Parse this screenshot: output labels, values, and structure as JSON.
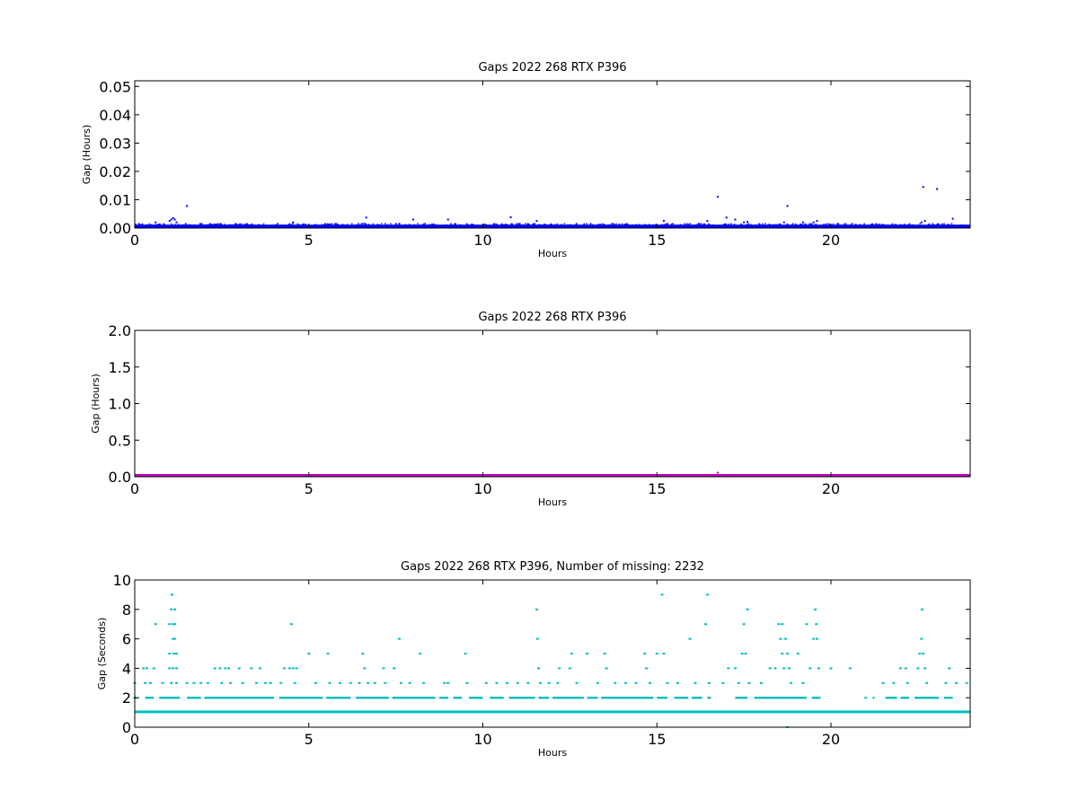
{
  "chart_data": [
    {
      "type": "scatter",
      "title": "Gaps 2022 268 RTX  P396",
      "xlabel": "Hours",
      "ylabel": "Gap (Hours)",
      "xlim": [
        0,
        24
      ],
      "ylim": [
        0,
        0.052
      ],
      "xticks": [
        "0",
        "5",
        "10",
        "15",
        "20"
      ],
      "yticks": [
        "0.00",
        "0.01",
        "0.02",
        "0.03",
        "0.04",
        "0.05"
      ],
      "grid": false,
      "series": [
        {
          "color": "#0000ff",
          "baseline": {
            "y_min": 0.0,
            "y_max": 0.0012
          },
          "points": [
            {
              "x": 0.6,
              "y": 0.002
            },
            {
              "x": 1.0,
              "y": 0.0025
            },
            {
              "x": 1.05,
              "y": 0.003
            },
            {
              "x": 1.1,
              "y": 0.0035
            },
            {
              "x": 1.15,
              "y": 0.003
            },
            {
              "x": 1.2,
              "y": 0.002
            },
            {
              "x": 1.5,
              "y": 0.0078
            },
            {
              "x": 4.55,
              "y": 0.002
            },
            {
              "x": 6.65,
              "y": 0.0037
            },
            {
              "x": 7.6,
              "y": 0.0015
            },
            {
              "x": 8.0,
              "y": 0.003
            },
            {
              "x": 9.0,
              "y": 0.003
            },
            {
              "x": 10.8,
              "y": 0.0038
            },
            {
              "x": 11.55,
              "y": 0.0025
            },
            {
              "x": 15.2,
              "y": 0.0025
            },
            {
              "x": 16.2,
              "y": 0.0015
            },
            {
              "x": 16.45,
              "y": 0.0025
            },
            {
              "x": 16.75,
              "y": 0.011
            },
            {
              "x": 17.0,
              "y": 0.0037
            },
            {
              "x": 17.25,
              "y": 0.003
            },
            {
              "x": 17.5,
              "y": 0.002
            },
            {
              "x": 17.6,
              "y": 0.0022
            },
            {
              "x": 18.65,
              "y": 0.002
            },
            {
              "x": 18.75,
              "y": 0.0078
            },
            {
              "x": 19.2,
              "y": 0.002
            },
            {
              "x": 19.5,
              "y": 0.002
            },
            {
              "x": 19.6,
              "y": 0.0025
            },
            {
              "x": 22.6,
              "y": 0.002
            },
            {
              "x": 22.65,
              "y": 0.0145
            },
            {
              "x": 22.7,
              "y": 0.0025
            },
            {
              "x": 23.05,
              "y": 0.0138
            },
            {
              "x": 23.5,
              "y": 0.0033
            }
          ]
        }
      ]
    },
    {
      "type": "scatter",
      "title": "Gaps 2022 268 RTX  P396",
      "xlabel": "Hours",
      "ylabel": "Gap (Hours)",
      "xlim": [
        0,
        24
      ],
      "ylim": [
        0,
        2.0
      ],
      "xticks": [
        "0",
        "5",
        "10",
        "15",
        "20"
      ],
      "yticks": [
        "0.0",
        "0.5",
        "1.0",
        "1.5",
        "2.0"
      ],
      "grid": false,
      "series": [
        {
          "color": "#bf00bf",
          "baseline": {
            "y_min": 0.0,
            "y_max": 0.02
          },
          "points": [
            {
              "x": 16.75,
              "y": 0.055
            }
          ]
        }
      ]
    },
    {
      "type": "scatter",
      "title": "Gaps 2022 268 RTX  P396, Number of missing: 2232",
      "xlabel": "Hours",
      "ylabel": "Gap (Seconds)",
      "xlim": [
        0,
        24
      ],
      "ylim": [
        0,
        10
      ],
      "xticks": [
        "0",
        "5",
        "10",
        "15",
        "20"
      ],
      "yticks": [
        "0",
        "2",
        "4",
        "6",
        "8",
        "10"
      ],
      "grid": false,
      "series": [
        {
          "color": "#00bfbf",
          "baseline": {
            "y_min": 0.95,
            "y_max": 1.05
          },
          "points": [
            {
              "x": 0.0,
              "y": 3
            },
            {
              "x": 0.0,
              "y": 2
            },
            {
              "x": 0.25,
              "y": 4
            },
            {
              "x": 0.35,
              "y": 4
            },
            {
              "x": 0.3,
              "y": 3
            },
            {
              "x": 0.45,
              "y": 3
            },
            {
              "x": 0.55,
              "y": 4
            },
            {
              "x": 0.6,
              "y": 7
            },
            {
              "x": 0.8,
              "y": 3
            },
            {
              "x": 1.0,
              "y": 7
            },
            {
              "x": 1.05,
              "y": 8
            },
            {
              "x": 1.07,
              "y": 9
            },
            {
              "x": 1.1,
              "y": 7
            },
            {
              "x": 1.1,
              "y": 6
            },
            {
              "x": 1.12,
              "y": 5
            },
            {
              "x": 1.15,
              "y": 8
            },
            {
              "x": 1.15,
              "y": 7
            },
            {
              "x": 1.15,
              "y": 6
            },
            {
              "x": 1.0,
              "y": 5
            },
            {
              "x": 1.2,
              "y": 5
            },
            {
              "x": 1.0,
              "y": 4
            },
            {
              "x": 1.1,
              "y": 4
            },
            {
              "x": 1.2,
              "y": 4
            },
            {
              "x": 1.05,
              "y": 3
            },
            {
              "x": 1.2,
              "y": 3
            },
            {
              "x": 1.5,
              "y": 3
            },
            {
              "x": 1.7,
              "y": 3
            },
            {
              "x": 1.9,
              "y": 3
            },
            {
              "x": 2.1,
              "y": 3
            },
            {
              "x": 2.3,
              "y": 4
            },
            {
              "x": 2.45,
              "y": 4
            },
            {
              "x": 2.6,
              "y": 4
            },
            {
              "x": 2.7,
              "y": 4
            },
            {
              "x": 2.5,
              "y": 3
            },
            {
              "x": 2.75,
              "y": 3
            },
            {
              "x": 3.0,
              "y": 4
            },
            {
              "x": 3.1,
              "y": 3
            },
            {
              "x": 3.35,
              "y": 4
            },
            {
              "x": 3.5,
              "y": 3
            },
            {
              "x": 3.6,
              "y": 4
            },
            {
              "x": 3.75,
              "y": 3
            },
            {
              "x": 3.9,
              "y": 3
            },
            {
              "x": 4.2,
              "y": 3
            },
            {
              "x": 4.3,
              "y": 4
            },
            {
              "x": 4.45,
              "y": 4
            },
            {
              "x": 4.5,
              "y": 7
            },
            {
              "x": 4.55,
              "y": 4
            },
            {
              "x": 4.6,
              "y": 3
            },
            {
              "x": 4.65,
              "y": 4
            },
            {
              "x": 5.0,
              "y": 5
            },
            {
              "x": 5.2,
              "y": 3
            },
            {
              "x": 5.55,
              "y": 5
            },
            {
              "x": 5.6,
              "y": 3
            },
            {
              "x": 5.9,
              "y": 3
            },
            {
              "x": 6.2,
              "y": 3
            },
            {
              "x": 6.45,
              "y": 3
            },
            {
              "x": 6.55,
              "y": 5
            },
            {
              "x": 6.6,
              "y": 4
            },
            {
              "x": 6.7,
              "y": 3
            },
            {
              "x": 6.9,
              "y": 3
            },
            {
              "x": 7.15,
              "y": 4
            },
            {
              "x": 7.2,
              "y": 3
            },
            {
              "x": 7.45,
              "y": 4
            },
            {
              "x": 7.6,
              "y": 6
            },
            {
              "x": 7.65,
              "y": 3
            },
            {
              "x": 7.9,
              "y": 3
            },
            {
              "x": 8.2,
              "y": 5
            },
            {
              "x": 8.3,
              "y": 3
            },
            {
              "x": 8.6,
              "y": 2
            },
            {
              "x": 8.9,
              "y": 3
            },
            {
              "x": 9.0,
              "y": 3
            },
            {
              "x": 9.3,
              "y": 2
            },
            {
              "x": 9.5,
              "y": 5
            },
            {
              "x": 9.55,
              "y": 3
            },
            {
              "x": 9.8,
              "y": 2
            },
            {
              "x": 10.1,
              "y": 3
            },
            {
              "x": 10.4,
              "y": 3
            },
            {
              "x": 10.7,
              "y": 3
            },
            {
              "x": 11.0,
              "y": 3
            },
            {
              "x": 11.3,
              "y": 3
            },
            {
              "x": 11.55,
              "y": 8
            },
            {
              "x": 11.57,
              "y": 6
            },
            {
              "x": 11.6,
              "y": 4
            },
            {
              "x": 11.65,
              "y": 3
            },
            {
              "x": 11.9,
              "y": 3
            },
            {
              "x": 12.15,
              "y": 3
            },
            {
              "x": 12.2,
              "y": 4
            },
            {
              "x": 12.5,
              "y": 4
            },
            {
              "x": 12.55,
              "y": 5
            },
            {
              "x": 12.7,
              "y": 3
            },
            {
              "x": 13.0,
              "y": 5
            },
            {
              "x": 13.3,
              "y": 3
            },
            {
              "x": 13.5,
              "y": 5
            },
            {
              "x": 13.55,
              "y": 4
            },
            {
              "x": 13.8,
              "y": 3
            },
            {
              "x": 14.1,
              "y": 3
            },
            {
              "x": 14.4,
              "y": 3
            },
            {
              "x": 14.65,
              "y": 5
            },
            {
              "x": 14.7,
              "y": 4
            },
            {
              "x": 14.8,
              "y": 3
            },
            {
              "x": 15.0,
              "y": 5
            },
            {
              "x": 15.15,
              "y": 9
            },
            {
              "x": 15.2,
              "y": 5
            },
            {
              "x": 15.3,
              "y": 3
            },
            {
              "x": 15.6,
              "y": 3
            },
            {
              "x": 15.95,
              "y": 6
            },
            {
              "x": 16.1,
              "y": 3
            },
            {
              "x": 16.4,
              "y": 7
            },
            {
              "x": 16.45,
              "y": 9
            },
            {
              "x": 16.5,
              "y": 3
            },
            {
              "x": 16.9,
              "y": 3
            },
            {
              "x": 17.05,
              "y": 4
            },
            {
              "x": 17.25,
              "y": 4
            },
            {
              "x": 17.35,
              "y": 3
            },
            {
              "x": 17.45,
              "y": 5
            },
            {
              "x": 17.5,
              "y": 7
            },
            {
              "x": 17.55,
              "y": 5
            },
            {
              "x": 17.6,
              "y": 8
            },
            {
              "x": 17.65,
              "y": 3
            },
            {
              "x": 18.0,
              "y": 3
            },
            {
              "x": 18.25,
              "y": 4
            },
            {
              "x": 18.4,
              "y": 4
            },
            {
              "x": 18.5,
              "y": 7
            },
            {
              "x": 18.55,
              "y": 6
            },
            {
              "x": 18.6,
              "y": 7
            },
            {
              "x": 18.6,
              "y": 5
            },
            {
              "x": 18.65,
              "y": 4
            },
            {
              "x": 18.7,
              "y": 6
            },
            {
              "x": 18.75,
              "y": 5
            },
            {
              "x": 18.75,
              "y": 0
            },
            {
              "x": 18.8,
              "y": 4
            },
            {
              "x": 18.85,
              "y": 3
            },
            {
              "x": 19.05,
              "y": 5
            },
            {
              "x": 19.2,
              "y": 3
            },
            {
              "x": 19.3,
              "y": 7
            },
            {
              "x": 19.4,
              "y": 4
            },
            {
              "x": 19.5,
              "y": 6
            },
            {
              "x": 19.55,
              "y": 8
            },
            {
              "x": 19.58,
              "y": 7
            },
            {
              "x": 19.6,
              "y": 6
            },
            {
              "x": 19.65,
              "y": 4
            },
            {
              "x": 20.0,
              "y": 4
            },
            {
              "x": 20.55,
              "y": 4
            },
            {
              "x": 21.0,
              "y": 2
            },
            {
              "x": 21.5,
              "y": 3
            },
            {
              "x": 21.6,
              "y": 2
            },
            {
              "x": 21.8,
              "y": 3
            },
            {
              "x": 22.0,
              "y": 4
            },
            {
              "x": 22.15,
              "y": 4
            },
            {
              "x": 22.2,
              "y": 3
            },
            {
              "x": 22.5,
              "y": 4
            },
            {
              "x": 22.55,
              "y": 5
            },
            {
              "x": 22.6,
              "y": 6
            },
            {
              "x": 22.62,
              "y": 8
            },
            {
              "x": 22.65,
              "y": 5
            },
            {
              "x": 22.7,
              "y": 4
            },
            {
              "x": 22.75,
              "y": 3
            },
            {
              "x": 23.0,
              "y": 2
            },
            {
              "x": 23.3,
              "y": 3
            },
            {
              "x": 23.4,
              "y": 4
            },
            {
              "x": 23.6,
              "y": 3
            },
            {
              "x": 23.9,
              "y": 3
            }
          ],
          "band2_segments": [
            [
              0.0,
              0.05
            ],
            [
              0.3,
              0.55
            ],
            [
              0.7,
              1.3
            ],
            [
              1.5,
              1.9
            ],
            [
              2.0,
              4.0
            ],
            [
              4.15,
              5.4
            ],
            [
              5.5,
              6.2
            ],
            [
              6.35,
              7.3
            ],
            [
              7.4,
              8.6
            ],
            [
              8.75,
              9.0
            ],
            [
              9.15,
              9.4
            ],
            [
              9.6,
              10.0
            ],
            [
              10.2,
              10.6
            ],
            [
              10.75,
              11.5
            ],
            [
              11.6,
              11.9
            ],
            [
              12.0,
              12.9
            ],
            [
              13.0,
              13.3
            ],
            [
              13.4,
              14.9
            ],
            [
              15.0,
              15.3
            ],
            [
              15.5,
              15.9
            ],
            [
              16.0,
              16.3
            ],
            [
              16.45,
              16.55
            ],
            [
              17.25,
              17.6
            ],
            [
              17.8,
              19.3
            ],
            [
              19.45,
              19.7
            ],
            [
              21.2,
              21.25
            ],
            [
              21.6,
              21.9
            ],
            [
              22.0,
              22.25
            ],
            [
              22.4,
              23.1
            ],
            [
              23.25,
              23.5
            ]
          ]
        }
      ]
    }
  ]
}
